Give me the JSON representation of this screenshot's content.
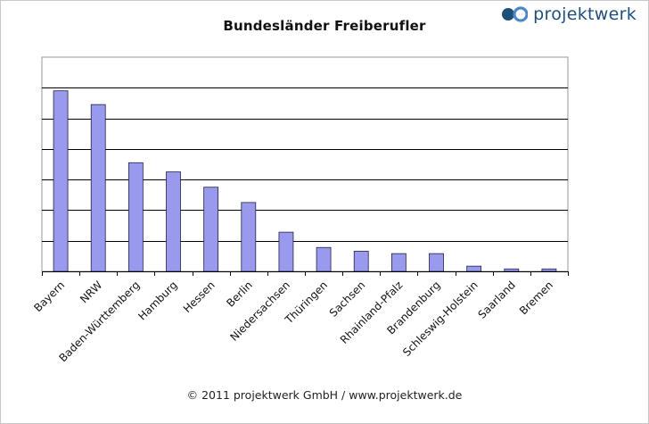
{
  "brand": {
    "name": "projektwerk",
    "colors": {
      "dark": "#1f4e7a",
      "light": "#4f86c6"
    }
  },
  "footer": "© 2011 projektwerk GmbH / www.projektwerk.de",
  "colors": {
    "bar_fill": "#9999ee",
    "bar_stroke": "#222244",
    "gridline": "#000000",
    "plot_border": "#999999"
  },
  "chart_data": {
    "type": "bar",
    "title": "Bundesländer Freiberufler",
    "xlabel": "",
    "ylabel": "",
    "grid": true,
    "legend": "none",
    "y_tick_labels_shown": false,
    "ylim": [
      0,
      7
    ],
    "categories": [
      "Bayern",
      "NRW",
      "Baden-Württemberg",
      "Hamburg",
      "Hessen",
      "Berlin",
      "Niedersachsen",
      "Thüringen",
      "Sachsen",
      "Rhainland-Pfalz",
      "Brandenburg",
      "Schleswig-Holstein",
      "Saarland",
      "Bremen"
    ],
    "values": [
      5.9,
      5.45,
      3.55,
      3.25,
      2.75,
      2.25,
      1.28,
      0.78,
      0.66,
      0.58,
      0.58,
      0.17,
      0.08,
      0.08
    ]
  }
}
